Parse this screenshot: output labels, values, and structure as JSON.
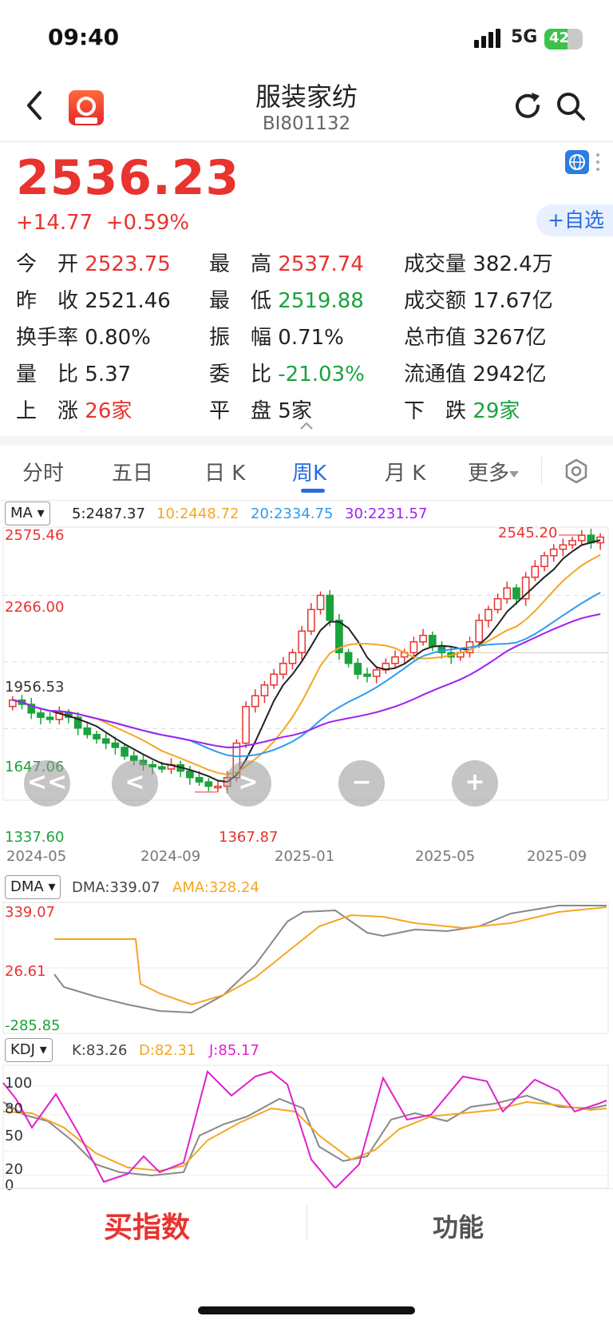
{
  "status": {
    "time": "09:40",
    "network": "5G",
    "battery": "42"
  },
  "header": {
    "title": "服装家纺",
    "code": "BI801132",
    "back_icon": "chevron-left-icon",
    "refresh_icon": "refresh-icon",
    "search_icon": "search-icon"
  },
  "quote": {
    "price": "2536.23",
    "change": "+14.77",
    "change_pct": "+0.59%",
    "add_watch": "+自选",
    "stats": [
      [
        {
          "label": "今　开",
          "value": "2523.75",
          "color": "red"
        },
        {
          "label": "最　高",
          "value": "2537.74",
          "color": "red"
        },
        {
          "label": "成交量",
          "value": "382.4万",
          "color": "dark"
        }
      ],
      [
        {
          "label": "昨　收",
          "value": "2521.46",
          "color": "dark"
        },
        {
          "label": "最　低",
          "value": "2519.88",
          "color": "green"
        },
        {
          "label": "成交额",
          "value": "17.67亿",
          "color": "dark"
        }
      ],
      [
        {
          "label": "换手率",
          "value": "0.80%",
          "color": "dark"
        },
        {
          "label": "振　幅",
          "value": "0.71%",
          "color": "dark"
        },
        {
          "label": "总市值",
          "value": "3267亿",
          "color": "dark"
        }
      ],
      [
        {
          "label": "量　比",
          "value": "5.37",
          "color": "dark"
        },
        {
          "label": "委　比",
          "value": "-21.03%",
          "color": "green"
        },
        {
          "label": "流通值",
          "value": "2942亿",
          "color": "dark"
        }
      ],
      [
        {
          "label": "上　涨",
          "value": "26家",
          "color": "red"
        },
        {
          "label": "平　盘",
          "value": "5家",
          "color": "dark"
        },
        {
          "label": "下　跌",
          "value": "29家",
          "color": "green"
        }
      ]
    ]
  },
  "tabs": [
    "分时",
    "五日",
    "日 K",
    "周K",
    "月 K",
    "更多"
  ],
  "active_tab": "周K",
  "ma": {
    "selector": "MA",
    "ma5": "5:2487.37",
    "ma10": "10:2448.72",
    "ma20": "20:2334.75",
    "ma30": "30:2231.57"
  },
  "kchart": {
    "y_labels": [
      "2575.46",
      "2266.00",
      "1956.53",
      "1647.06",
      "1337.60"
    ],
    "x_labels": [
      "2024-05",
      "2024-09",
      "2025-01",
      "2025-05",
      "2025-09"
    ],
    "high_label": "2545.20",
    "low_label": "1367.87"
  },
  "controls": {
    "left": "<<",
    "prev": "<",
    "next": ">",
    "zoom_out": "−",
    "zoom_in": "+"
  },
  "dma": {
    "selector": "DMA",
    "dma": "DMA:339.07",
    "ama": "AMA:328.24",
    "y_labels": [
      "339.07",
      "26.61",
      "-285.85"
    ]
  },
  "kdj": {
    "selector": "KDJ",
    "k": "K:83.26",
    "d": "D:82.31",
    "j": "J:85.17",
    "y_labels": [
      "100",
      "80",
      "50",
      "20",
      "0"
    ]
  },
  "bottom": {
    "buy": "买指数",
    "func": "功能"
  },
  "colors": {
    "up": "#e8332f",
    "down": "#1aa33d",
    "ma5": "#222222",
    "ma10": "#f5a623",
    "ma20": "#2d9cf0",
    "ma30": "#a020f0"
  },
  "chart_data": {
    "type": "candlestick",
    "x_labels": [
      "2024-05",
      "2024-09",
      "2025-01",
      "2025-05",
      "2025-09"
    ],
    "y_range": [
      1337.6,
      2575.46
    ],
    "weekly_close_approx": [
      1780,
      1760,
      1720,
      1700,
      1690,
      1720,
      1700,
      1650,
      1620,
      1600,
      1580,
      1560,
      1520,
      1500,
      1480,
      1470,
      1460,
      1480,
      1450,
      1420,
      1400,
      1380,
      1380,
      1420,
      1580,
      1750,
      1800,
      1850,
      1900,
      1950,
      2000,
      2100,
      2200,
      2266,
      2150,
      2000,
      1950,
      1900,
      1890,
      1920,
      1950,
      1980,
      2000,
      2050,
      2080,
      2030,
      2000,
      1980,
      2000,
      2050,
      2150,
      2200,
      2250,
      2300,
      2250,
      2350,
      2400,
      2450,
      2480,
      2500,
      2520,
      2545,
      2510,
      2536.23
    ],
    "annotations": {
      "high": 2545.2,
      "low": 1367.87
    }
  }
}
